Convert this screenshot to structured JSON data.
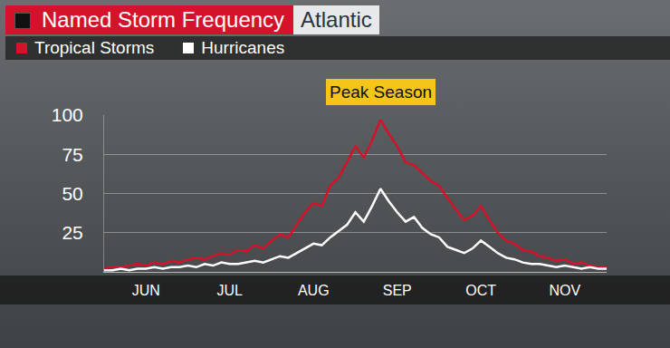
{
  "chart_data": {
    "type": "line",
    "title": "Named Storm Frequency",
    "subtitle": "Atlantic",
    "categories": [
      null,
      null,
      null,
      null,
      null,
      "JUN",
      null,
      null,
      null,
      null,
      null,
      null,
      null,
      null,
      null,
      "JUL",
      null,
      null,
      null,
      null,
      null,
      null,
      null,
      null,
      null,
      "AUG",
      null,
      null,
      null,
      null,
      null,
      null,
      null,
      null,
      null,
      "SEP",
      null,
      null,
      null,
      null,
      null,
      null,
      null,
      null,
      null,
      "OCT",
      null,
      null,
      null,
      null,
      null,
      null,
      null,
      null,
      null,
      "NOV",
      null,
      null,
      null,
      null,
      null
    ],
    "series": [
      {
        "name": "Tropical Storms",
        "color": "#d4122b",
        "values": [
          2,
          3,
          3,
          4,
          5,
          4,
          6,
          5,
          7,
          6,
          8,
          9,
          8,
          10,
          12,
          11,
          14,
          13,
          17,
          15,
          20,
          24,
          22,
          30,
          38,
          44,
          42,
          55,
          60,
          70,
          80,
          73,
          84,
          97,
          88,
          80,
          70,
          68,
          63,
          58,
          55,
          47,
          40,
          33,
          36,
          42,
          33,
          25,
          20,
          18,
          14,
          13,
          10,
          9,
          7,
          8,
          5,
          6,
          4,
          3,
          3
        ]
      },
      {
        "name": "Hurricanes",
        "color": "#ffffff",
        "values": [
          1,
          1,
          2,
          1,
          2,
          2,
          3,
          2,
          3,
          3,
          4,
          3,
          5,
          4,
          6,
          5,
          5,
          6,
          7,
          6,
          8,
          10,
          9,
          12,
          15,
          18,
          17,
          22,
          26,
          30,
          38,
          32,
          42,
          53,
          45,
          38,
          32,
          35,
          28,
          24,
          22,
          16,
          14,
          12,
          15,
          20,
          16,
          12,
          9,
          8,
          6,
          5,
          5,
          4,
          3,
          4,
          3,
          2,
          3,
          2,
          2
        ]
      }
    ],
    "ylim": [
      0,
      100
    ],
    "yticks": [
      25,
      50,
      75,
      100
    ],
    "grid": true,
    "annotations": [
      {
        "text": "Peak Season"
      }
    ]
  }
}
